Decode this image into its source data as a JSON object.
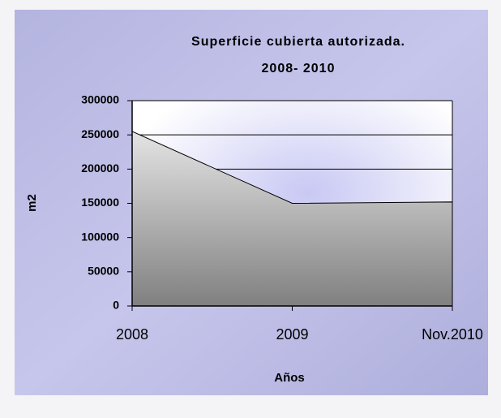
{
  "chart_data": {
    "type": "area",
    "title": [
      "Superficie cubierta autorizada.",
      "2008- 2010"
    ],
    "xlabel": "Años",
    "ylabel": "m2",
    "categories": [
      "2008",
      "2009",
      "Nov.2010"
    ],
    "values": [
      255000,
      150000,
      152000
    ],
    "ylim": [
      0,
      300000
    ],
    "yticks": [
      0,
      50000,
      100000,
      150000,
      200000,
      250000,
      300000
    ],
    "grid": true
  }
}
